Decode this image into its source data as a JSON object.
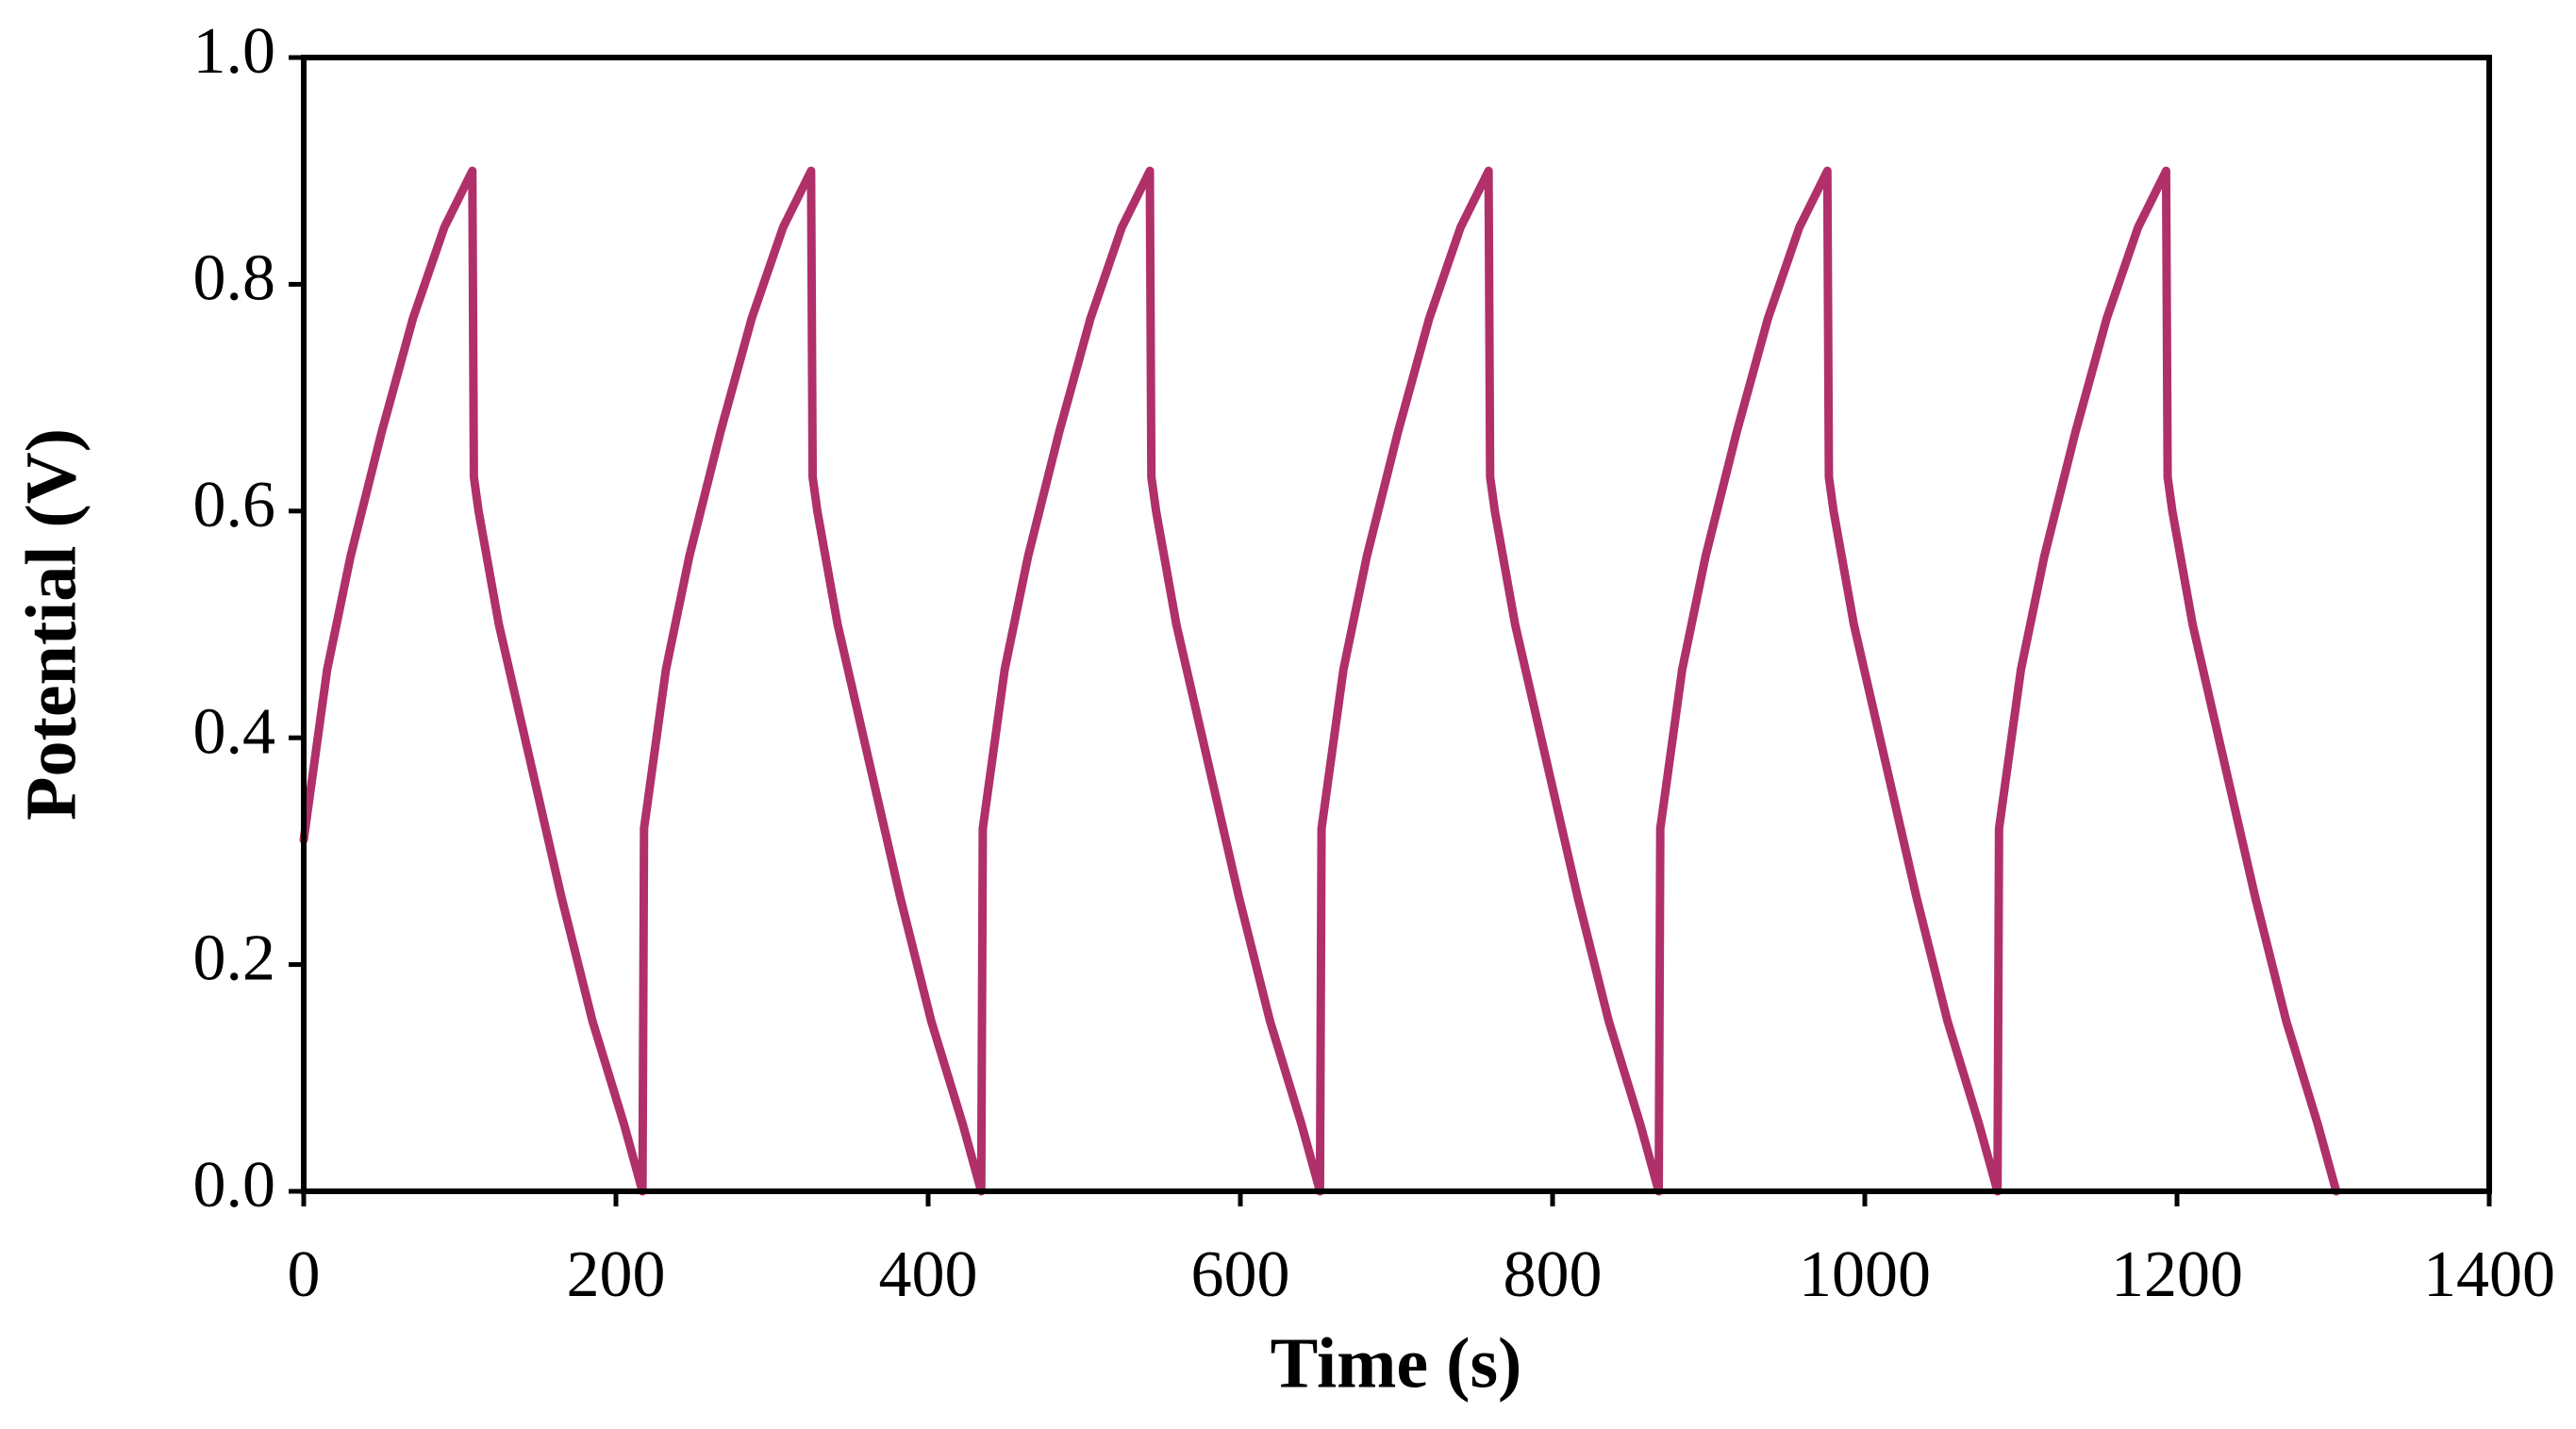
{
  "chart_data": {
    "type": "line",
    "xlabel": "Time (s)",
    "ylabel": "Potential (V)",
    "x": [
      0,
      5,
      15,
      30,
      50,
      70,
      90,
      108,
      109,
      112,
      125,
      145,
      165,
      185,
      205,
      217,
      218,
      222,
      232,
      247,
      267,
      287,
      307,
      325,
      326,
      329,
      342,
      362,
      382,
      402,
      422,
      434,
      435,
      439,
      449,
      464,
      484,
      504,
      524,
      542,
      543,
      546,
      559,
      579,
      599,
      619,
      639,
      651,
      652,
      656,
      666,
      681,
      701,
      721,
      741,
      759,
      760,
      763,
      776,
      796,
      816,
      836,
      856,
      868,
      869,
      873,
      883,
      898,
      918,
      938,
      958,
      976,
      977,
      980,
      993,
      1013,
      1033,
      1053,
      1073,
      1085,
      1086,
      1090,
      1100,
      1115,
      1135,
      1155,
      1175,
      1193,
      1194,
      1197,
      1210,
      1230,
      1250,
      1270,
      1290,
      1302
    ],
    "values": [
      0.31,
      0.36,
      0.46,
      0.56,
      0.67,
      0.77,
      0.85,
      0.9,
      0.63,
      0.6,
      0.5,
      0.38,
      0.26,
      0.15,
      0.06,
      0.0,
      0.32,
      0.36,
      0.46,
      0.56,
      0.67,
      0.77,
      0.85,
      0.9,
      0.63,
      0.6,
      0.5,
      0.38,
      0.26,
      0.15,
      0.06,
      0.0,
      0.32,
      0.36,
      0.46,
      0.56,
      0.67,
      0.77,
      0.85,
      0.9,
      0.63,
      0.6,
      0.5,
      0.38,
      0.26,
      0.15,
      0.06,
      0.0,
      0.32,
      0.36,
      0.46,
      0.56,
      0.67,
      0.77,
      0.85,
      0.9,
      0.63,
      0.6,
      0.5,
      0.38,
      0.26,
      0.15,
      0.06,
      0.0,
      0.32,
      0.36,
      0.46,
      0.56,
      0.67,
      0.77,
      0.85,
      0.9,
      0.63,
      0.6,
      0.5,
      0.38,
      0.26,
      0.15,
      0.06,
      0.0,
      0.32,
      0.36,
      0.46,
      0.56,
      0.67,
      0.77,
      0.85,
      0.9,
      0.63,
      0.6,
      0.5,
      0.38,
      0.26,
      0.15,
      0.06,
      0.0
    ],
    "color": "#b0306a",
    "xlim": [
      0,
      1400
    ],
    "xticks": [
      0,
      200,
      400,
      600,
      800,
      1000,
      1200,
      1400
    ],
    "ylim": [
      0,
      1.0
    ],
    "yticks": [
      {
        "value": 0,
        "label": "0.0"
      },
      0.2,
      0.4,
      0.6,
      0.8,
      {
        "value": 1.0,
        "label": "1.0"
      }
    ],
    "grid": false
  }
}
